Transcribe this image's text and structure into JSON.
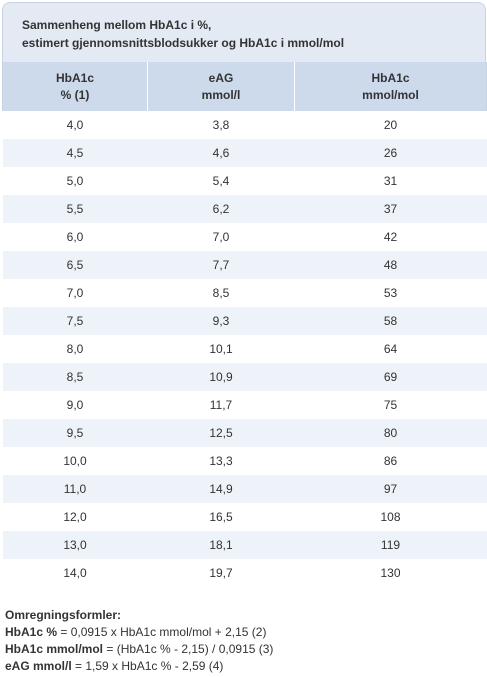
{
  "caption": {
    "line1": "Sammenheng mellom HbA1c i %,",
    "line2": "estimert gjennomsnittsblodsukker og HbA1c i mmol/mol"
  },
  "headers": [
    {
      "line1": "HbA1c",
      "line2": "% (1)"
    },
    {
      "line1": "eAG",
      "line2": "mmol/l"
    },
    {
      "line1": "HbA1c",
      "line2": "mmol/mol"
    }
  ],
  "rows": [
    [
      "4,0",
      "3,8",
      "20"
    ],
    [
      "4,5",
      "4,6",
      "26"
    ],
    [
      "5,0",
      "5,4",
      "31"
    ],
    [
      "5,5",
      "6,2",
      "37"
    ],
    [
      "6,0",
      "7,0",
      "42"
    ],
    [
      "6,5",
      "7,7",
      "48"
    ],
    [
      "7,0",
      "8,5",
      "53"
    ],
    [
      "7,5",
      "9,3",
      "58"
    ],
    [
      "8,0",
      "10,1",
      "64"
    ],
    [
      "8,5",
      "10,9",
      "69"
    ],
    [
      "9,0",
      "11,7",
      "75"
    ],
    [
      "9,5",
      "12,5",
      "80"
    ],
    [
      "10,0",
      "13,3",
      "86"
    ],
    [
      "11,0",
      "14,9",
      "97"
    ],
    [
      "12,0",
      "16,5",
      "108"
    ],
    [
      "13,0",
      "18,1",
      "119"
    ],
    [
      "14,0",
      "19,7",
      "130"
    ]
  ],
  "formulas": {
    "title": "Omregningsformler:",
    "items": [
      {
        "label": "HbA1c %",
        "text": " = 0,0915 x HbA1c mmol/mol + 2,15 (2)"
      },
      {
        "label": "HbA1c mmol/mol",
        "text": " = (HbA1c % - 2,15) / 0,0915 (3)"
      },
      {
        "label": "eAG mmol/l",
        "text": " = 1,59 x HbA1c % - 2,59 (4)"
      }
    ]
  }
}
